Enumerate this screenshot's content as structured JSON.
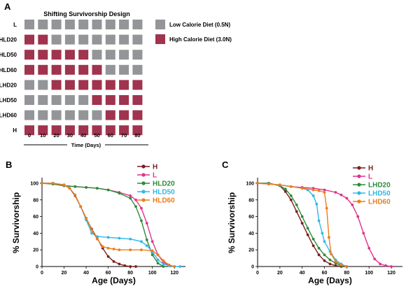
{
  "panel_a": {
    "letter": "A",
    "title": "Shifting Survivorship Design",
    "rows": [
      {
        "label": "L",
        "cells": [
          "low",
          "low",
          "low",
          "low",
          "low",
          "low",
          "low",
          "low",
          "low"
        ]
      },
      {
        "label": "HLD20",
        "cells": [
          "high",
          "high",
          "low",
          "low",
          "low",
          "low",
          "low",
          "low",
          "low"
        ]
      },
      {
        "label": "HLD50",
        "cells": [
          "high",
          "high",
          "high",
          "high",
          "high",
          "low",
          "low",
          "low",
          "low"
        ]
      },
      {
        "label": "HLD60",
        "cells": [
          "high",
          "high",
          "high",
          "high",
          "high",
          "high",
          "low",
          "low",
          "low"
        ]
      },
      {
        "label": "LHD20",
        "cells": [
          "low",
          "low",
          "high",
          "high",
          "high",
          "high",
          "high",
          "high",
          "high"
        ]
      },
      {
        "label": "LHD50",
        "cells": [
          "low",
          "low",
          "low",
          "low",
          "low",
          "high",
          "high",
          "high",
          "high"
        ]
      },
      {
        "label": "LHD60",
        "cells": [
          "low",
          "low",
          "low",
          "low",
          "low",
          "low",
          "high",
          "high",
          "high"
        ]
      },
      {
        "label": "H",
        "cells": [
          "high",
          "high",
          "high",
          "high",
          "high",
          "high",
          "high",
          "high",
          "high"
        ]
      }
    ],
    "time_ticks": [
      "0",
      "10",
      "20",
      "30",
      "40",
      "50",
      "60",
      "70",
      "80"
    ],
    "time_label": "Time (Days)",
    "legend": [
      {
        "key": "low",
        "label": "Low Calorie Diet (0.5N)",
        "color": "#939598"
      },
      {
        "key": "high",
        "label": "High Calorie Diet (3.0N)",
        "color": "#a0334e"
      }
    ]
  },
  "chart_data": [
    {
      "panel": "B",
      "type": "scatter",
      "xlabel": "Age (Days)",
      "ylabel": "% Survivorship",
      "xlim": [
        0,
        130
      ],
      "ylim": [
        0,
        105
      ],
      "xticks": [
        "0",
        "20",
        "40",
        "60",
        "80",
        "100",
        "120"
      ],
      "yticks": [
        "0",
        "20",
        "40",
        "60",
        "80",
        "100"
      ],
      "series": [
        {
          "name": "H",
          "color": "#7a1f1f",
          "x": [
            0,
            10,
            20,
            25,
            30,
            35,
            40,
            45,
            50,
            55,
            60,
            65,
            70,
            75,
            80,
            85
          ],
          "y": [
            100,
            100,
            98,
            94,
            85,
            72,
            58,
            45,
            34,
            22,
            12,
            6,
            3,
            1,
            0,
            0
          ]
        },
        {
          "name": "L",
          "color": "#e0338a",
          "x": [
            0,
            10,
            20,
            30,
            40,
            50,
            60,
            70,
            80,
            85,
            90,
            95,
            100,
            105,
            110,
            115,
            120
          ],
          "y": [
            100,
            99,
            97,
            96,
            95,
            94,
            92,
            89,
            85,
            80,
            70,
            52,
            30,
            14,
            5,
            1,
            0
          ]
        },
        {
          "name": "HLD20",
          "color": "#2e8b3a",
          "x": [
            0,
            10,
            20,
            30,
            40,
            50,
            60,
            70,
            80,
            85,
            90,
            95,
            100,
            105,
            110
          ],
          "y": [
            100,
            99,
            97,
            96,
            95,
            94,
            92,
            88,
            82,
            72,
            55,
            32,
            14,
            4,
            0
          ]
        },
        {
          "name": "HLD50",
          "color": "#2fb8e6",
          "x": [
            0,
            10,
            20,
            25,
            30,
            35,
            40,
            45,
            50,
            60,
            70,
            80,
            90,
            95,
            100,
            105,
            110,
            115,
            120,
            125
          ],
          "y": [
            100,
            100,
            98,
            94,
            86,
            72,
            56,
            40,
            36,
            35,
            34,
            33,
            30,
            25,
            18,
            8,
            3,
            1,
            0,
            0
          ]
        },
        {
          "name": "HLD60",
          "color": "#ef7d1a",
          "x": [
            0,
            10,
            20,
            25,
            30,
            35,
            40,
            45,
            50,
            55,
            60,
            65,
            70,
            80,
            90,
            100,
            105,
            110,
            115,
            120
          ],
          "y": [
            100,
            100,
            98,
            94,
            86,
            72,
            58,
            44,
            33,
            24,
            22,
            21,
            20,
            20,
            20,
            19,
            14,
            7,
            2,
            0
          ]
        }
      ]
    },
    {
      "panel": "C",
      "type": "scatter",
      "xlabel": "Age (Days)",
      "ylabel": "% Survivorship",
      "xlim": [
        0,
        130
      ],
      "ylim": [
        0,
        105
      ],
      "xticks": [
        "0",
        "20",
        "40",
        "60",
        "80",
        "100",
        "120"
      ],
      "yticks": [
        "0",
        "20",
        "40",
        "60",
        "80",
        "100"
      ],
      "series": [
        {
          "name": "H",
          "color": "#7a1f1f",
          "x": [
            0,
            10,
            20,
            25,
            30,
            35,
            40,
            45,
            50,
            55,
            60,
            65,
            70,
            75,
            80
          ],
          "y": [
            100,
            100,
            97,
            90,
            80,
            66,
            52,
            38,
            25,
            14,
            7,
            3,
            1,
            0,
            0
          ]
        },
        {
          "name": "L",
          "color": "#e0338a",
          "x": [
            0,
            10,
            20,
            30,
            40,
            50,
            60,
            70,
            75,
            80,
            85,
            90,
            95,
            100,
            105,
            110,
            115,
            120
          ],
          "y": [
            100,
            99,
            98,
            96,
            95,
            94,
            92,
            89,
            86,
            82,
            74,
            60,
            40,
            22,
            9,
            3,
            1,
            0
          ]
        },
        {
          "name": "LHD20",
          "color": "#2e8b3a",
          "x": [
            0,
            10,
            20,
            25,
            30,
            35,
            40,
            45,
            50,
            55,
            60,
            65,
            70,
            75,
            80
          ],
          "y": [
            100,
            100,
            97,
            93,
            85,
            74,
            60,
            46,
            33,
            22,
            14,
            8,
            4,
            1,
            0
          ]
        },
        {
          "name": "LHD50",
          "color": "#2fb8e6",
          "x": [
            0,
            10,
            20,
            30,
            40,
            45,
            50,
            53,
            55,
            58,
            60,
            65,
            70,
            75,
            80
          ],
          "y": [
            100,
            99,
            98,
            96,
            94,
            92,
            85,
            75,
            55,
            40,
            30,
            18,
            8,
            3,
            0
          ]
        },
        {
          "name": "LHD60",
          "color": "#ef7d1a",
          "x": [
            0,
            10,
            20,
            30,
            40,
            50,
            55,
            60,
            62,
            64,
            66,
            70,
            75,
            80
          ],
          "y": [
            100,
            99,
            98,
            96,
            94,
            92,
            91,
            89,
            70,
            35,
            15,
            6,
            2,
            0
          ]
        }
      ]
    }
  ]
}
